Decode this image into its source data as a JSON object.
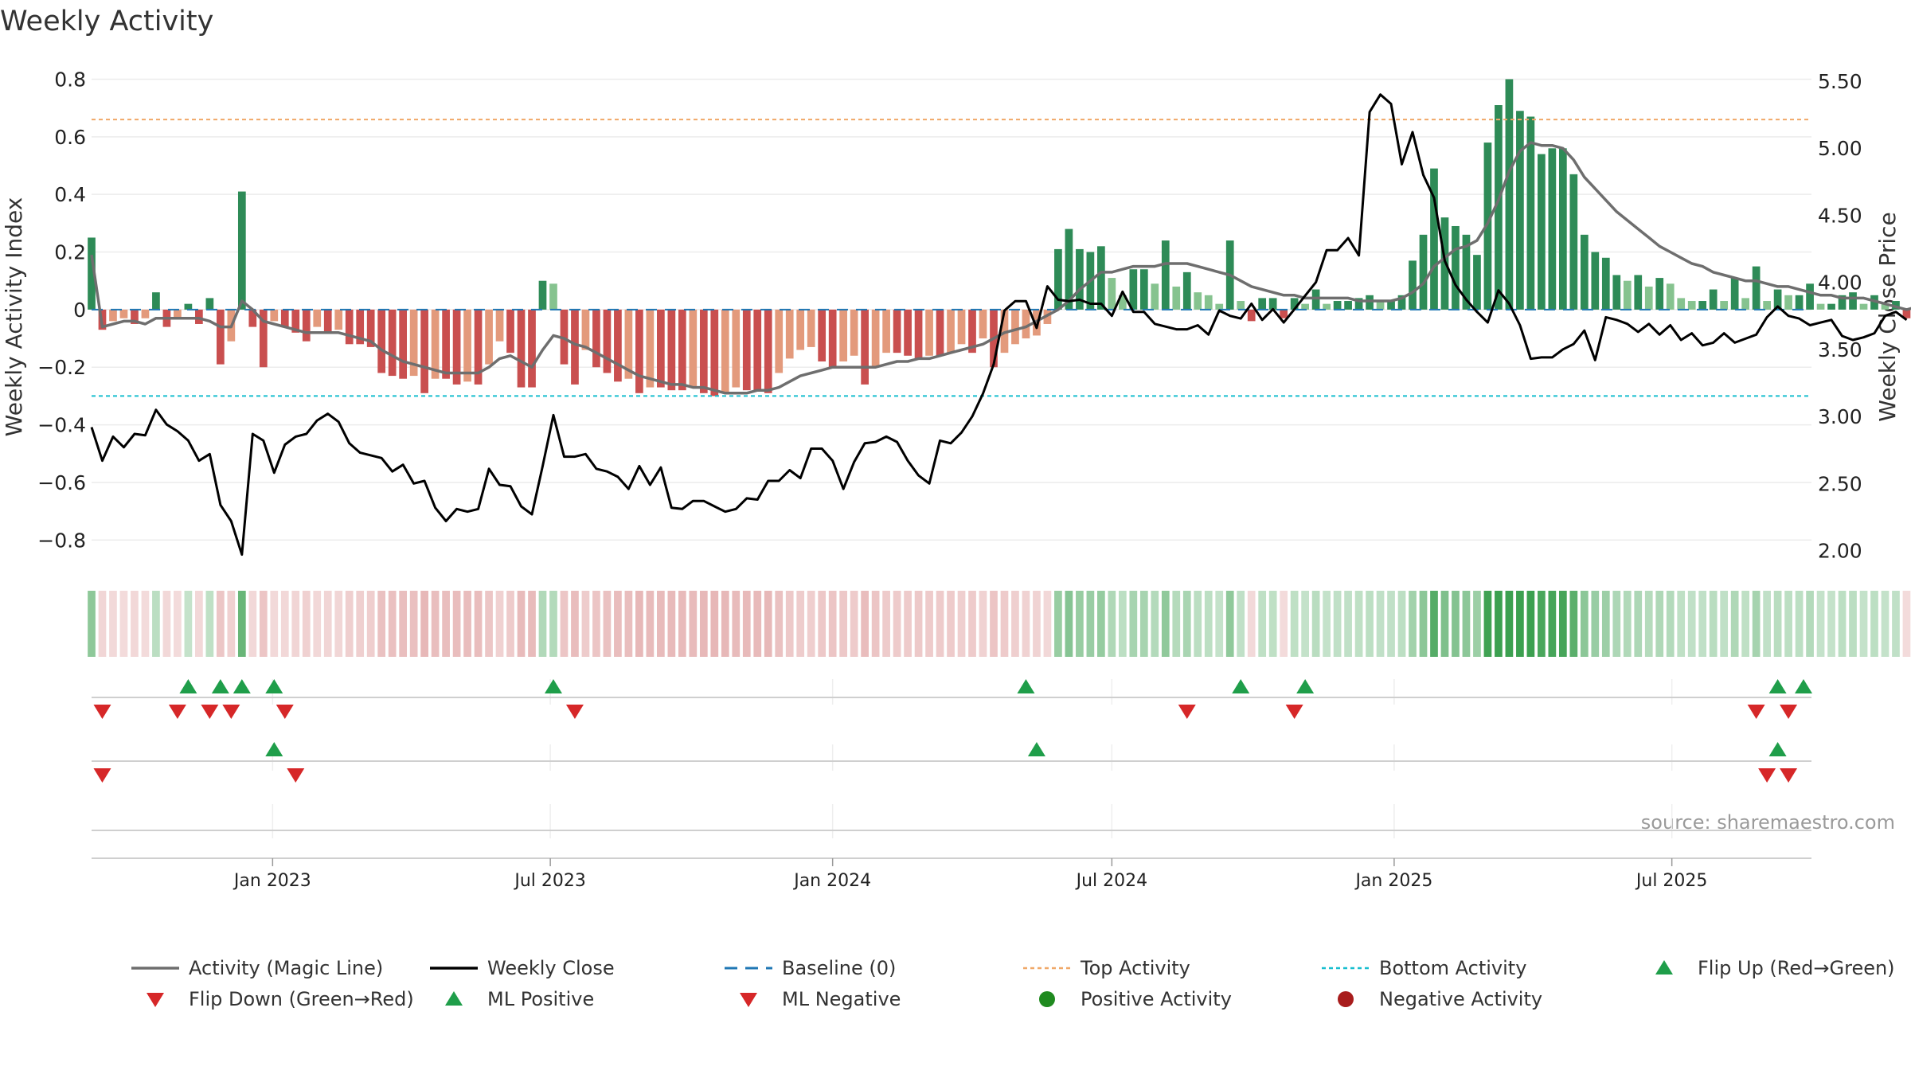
{
  "title": "Weekly Activity",
  "source": "source: sharemaestro.com",
  "colors": {
    "pos_dark": "#2e8b57",
    "pos_light": "#86c38f",
    "neg_dark": "#c94f4f",
    "neg_light": "#e39a7c",
    "magic_line": "#6e6e6e",
    "close_line": "#000000",
    "baseline": "#1f77b4",
    "top": "#f0a868",
    "bottom": "#17becf",
    "up_marker": "#1f9e4a",
    "down_marker": "#d62728",
    "pos_dot": "#1f8a1f",
    "neg_dot": "#a81c1c"
  },
  "chart_data": {
    "type": "bar",
    "title": "Weekly Activity",
    "ylabel": "Weekly Activity Index",
    "y2label": "Weekly Close Price",
    "ylim": [
      -0.86,
      0.84
    ],
    "y2lim": [
      1.95,
      5.6
    ],
    "yticks": [
      0.8,
      0.6,
      0.4,
      0.2,
      0,
      -0.2,
      -0.4,
      -0.6,
      -0.8
    ],
    "ytick_labels": [
      "0.8",
      "0.6",
      "0.4",
      "0.2",
      "0",
      "−0.2",
      "−0.4",
      "−0.6",
      "−0.8"
    ],
    "y2ticks": [
      5.5,
      5.0,
      4.5,
      4.0,
      3.5,
      3.0,
      2.5,
      2.0
    ],
    "y2tick_labels": [
      "5.50",
      "5.00",
      "4.50",
      "4.00",
      "3.50",
      "3.00",
      "2.50",
      "2.00"
    ],
    "xlim": [
      "2022-09-05",
      "2025-09-30"
    ],
    "xticks": [
      {
        "date": "2023-01-01",
        "label": "Jan 2023"
      },
      {
        "date": "2023-07-01",
        "label": "Jul 2023"
      },
      {
        "date": "2024-01-01",
        "label": "Jan 2024"
      },
      {
        "date": "2024-07-01",
        "label": "Jul 2024"
      },
      {
        "date": "2025-01-01",
        "label": "Jan 2025"
      },
      {
        "date": "2025-07-01",
        "label": "Jul 2025"
      }
    ],
    "start_date": "2022-09-05",
    "interval_days": 7,
    "activity": [
      0.25,
      -0.07,
      -0.04,
      -0.03,
      -0.05,
      -0.03,
      0.06,
      -0.06,
      -0.03,
      0.02,
      -0.05,
      0.04,
      -0.19,
      -0.11,
      0.41,
      -0.06,
      -0.2,
      -0.04,
      -0.06,
      -0.08,
      -0.11,
      -0.06,
      -0.08,
      -0.07,
      -0.12,
      -0.12,
      -0.13,
      -0.22,
      -0.23,
      -0.24,
      -0.23,
      -0.29,
      -0.24,
      -0.24,
      -0.26,
      -0.25,
      -0.26,
      -0.19,
      -0.11,
      -0.15,
      -0.27,
      -0.27,
      0.1,
      0.09,
      -0.19,
      -0.26,
      -0.14,
      -0.2,
      -0.22,
      -0.25,
      -0.24,
      -0.29,
      -0.27,
      -0.27,
      -0.28,
      -0.28,
      -0.27,
      -0.29,
      -0.3,
      -0.29,
      -0.27,
      -0.28,
      -0.28,
      -0.29,
      -0.22,
      -0.17,
      -0.14,
      -0.13,
      -0.18,
      -0.2,
      -0.18,
      -0.16,
      -0.26,
      -0.2,
      -0.15,
      -0.15,
      -0.16,
      -0.17,
      -0.16,
      -0.16,
      -0.15,
      -0.12,
      -0.15,
      -0.1,
      -0.2,
      -0.15,
      -0.12,
      -0.1,
      -0.09,
      -0.05,
      0.21,
      0.28,
      0.21,
      0.2,
      0.22,
      0.11,
      0.05,
      0.14,
      0.14,
      0.09,
      0.24,
      0.08,
      0.13,
      0.06,
      0.05,
      0.02,
      0.24,
      0.03,
      -0.04,
      0.04,
      0.04,
      -0.03,
      0.04,
      0.02,
      0.07,
      0.02,
      0.03,
      0.03,
      0.04,
      0.05,
      0.03,
      0.03,
      0.05,
      0.17,
      0.26,
      0.49,
      0.32,
      0.29,
      0.26,
      0.19,
      0.58,
      0.71,
      0.8,
      0.69,
      0.67,
      0.54,
      0.56,
      0.56,
      0.47,
      0.26,
      0.2,
      0.18,
      0.12,
      0.1,
      0.12,
      0.08,
      0.11,
      0.09,
      0.04,
      0.03,
      0.03,
      0.07,
      0.03,
      0.11,
      0.04,
      0.15,
      0.03,
      0.07,
      0.05,
      0.05,
      0.09,
      0.02,
      0.02,
      0.05,
      0.06,
      0.02,
      0.05,
      0.02,
      0.03,
      -0.03,
      0.06,
      -0.04,
      -0.02,
      -0.05,
      0.04,
      -0.01,
      0.06,
      0.02,
      0.02
    ],
    "magic_line": [
      0.19,
      -0.06,
      -0.05,
      -0.04,
      -0.04,
      -0.05,
      -0.03,
      -0.03,
      -0.03,
      -0.03,
      -0.03,
      -0.04,
      -0.06,
      -0.06,
      0.03,
      0,
      -0.04,
      -0.05,
      -0.06,
      -0.07,
      -0.08,
      -0.08,
      -0.08,
      -0.08,
      -0.09,
      -0.1,
      -0.11,
      -0.14,
      -0.16,
      -0.18,
      -0.19,
      -0.2,
      -0.21,
      -0.22,
      -0.22,
      -0.22,
      -0.22,
      -0.2,
      -0.17,
      -0.16,
      -0.18,
      -0.2,
      -0.14,
      -0.09,
      -0.1,
      -0.12,
      -0.13,
      -0.15,
      -0.17,
      -0.19,
      -0.21,
      -0.23,
      -0.24,
      -0.25,
      -0.26,
      -0.26,
      -0.27,
      -0.27,
      -0.28,
      -0.29,
      -0.29,
      -0.29,
      -0.28,
      -0.28,
      -0.27,
      -0.25,
      -0.23,
      -0.22,
      -0.21,
      -0.2,
      -0.2,
      -0.2,
      -0.2,
      -0.2,
      -0.19,
      -0.18,
      -0.18,
      -0.17,
      -0.17,
      -0.16,
      -0.15,
      -0.14,
      -0.13,
      -0.12,
      -0.1,
      -0.08,
      -0.07,
      -0.06,
      -0.04,
      -0.02,
      0,
      0.03,
      0.07,
      0.1,
      0.13,
      0.13,
      0.14,
      0.15,
      0.15,
      0.15,
      0.16,
      0.16,
      0.16,
      0.15,
      0.14,
      0.13,
      0.12,
      0.1,
      0.08,
      0.07,
      0.06,
      0.05,
      0.05,
      0.04,
      0.04,
      0.04,
      0.04,
      0.04,
      0.03,
      0.03,
      0.03,
      0.03,
      0.04,
      0.06,
      0.09,
      0.15,
      0.18,
      0.21,
      0.22,
      0.24,
      0.3,
      0.38,
      0.48,
      0.55,
      0.58,
      0.57,
      0.57,
      0.56,
      0.52,
      0.46,
      0.42,
      0.38,
      0.34,
      0.31,
      0.28,
      0.25,
      0.22,
      0.2,
      0.18,
      0.16,
      0.15,
      0.13,
      0.12,
      0.11,
      0.1,
      0.1,
      0.09,
      0.08,
      0.08,
      0.07,
      0.06,
      0.05,
      0.05,
      0.04,
      0.04,
      0.04,
      0.03,
      0.02,
      0.01,
      0,
      0.01,
      0,
      0,
      -0.01,
      0,
      -0.01,
      0,
      0,
      0
    ],
    "close": [
      2.92,
      2.67,
      2.85,
      2.77,
      2.87,
      2.86,
      3.05,
      2.94,
      2.89,
      2.82,
      2.67,
      2.72,
      2.34,
      2.22,
      1.97,
      2.87,
      2.82,
      2.58,
      2.79,
      2.85,
      2.87,
      2.97,
      3.02,
      2.96,
      2.8,
      2.73,
      2.71,
      2.69,
      2.59,
      2.64,
      2.5,
      2.52,
      2.32,
      2.22,
      2.31,
      2.29,
      2.31,
      2.61,
      2.49,
      2.48,
      2.33,
      2.27,
      2.63,
      3.01,
      2.7,
      2.7,
      2.72,
      2.61,
      2.59,
      2.55,
      2.46,
      2.63,
      2.49,
      2.62,
      2.32,
      2.31,
      2.37,
      2.37,
      2.33,
      2.29,
      2.31,
      2.39,
      2.38,
      2.52,
      2.52,
      2.6,
      2.54,
      2.76,
      2.76,
      2.67,
      2.46,
      2.66,
      2.8,
      2.81,
      2.85,
      2.81,
      2.67,
      2.56,
      2.5,
      2.82,
      2.8,
      2.88,
      3.0,
      3.17,
      3.39,
      3.79,
      3.86,
      3.86,
      3.66,
      3.97,
      3.87,
      3.86,
      3.87,
      3.84,
      3.84,
      3.75,
      3.93,
      3.78,
      3.78,
      3.69,
      3.67,
      3.65,
      3.65,
      3.68,
      3.61,
      3.79,
      3.75,
      3.73,
      3.84,
      3.72,
      3.8,
      3.7,
      3.8,
      3.9,
      4.0,
      4.24,
      4.24,
      4.33,
      4.2,
      5.27,
      5.4,
      5.33,
      4.88,
      5.12,
      4.8,
      4.63,
      4.16,
      3.98,
      3.87,
      3.78,
      3.7,
      3.94,
      3.84,
      3.68,
      3.43,
      3.44,
      3.44,
      3.5,
      3.54,
      3.64,
      3.42,
      3.74,
      3.72,
      3.69,
      3.63,
      3.69,
      3.61,
      3.68,
      3.57,
      3.62,
      3.53,
      3.55,
      3.62,
      3.55,
      3.58,
      3.61,
      3.74,
      3.82,
      3.75,
      3.73,
      3.68,
      3.7,
      3.72,
      3.6,
      3.57,
      3.59,
      3.62,
      3.75,
      3.78,
      3.72
    ],
    "levels": {
      "top": 0.66,
      "bottom": -0.3,
      "baseline": 0
    },
    "signals": {
      "flip_up": [
        "2022-11-07",
        "2022-11-28",
        "2022-12-12",
        "2023-01-02",
        "2023-07-03",
        "2024-05-06",
        "2024-09-23",
        "2024-11-04",
        "2025-09-08",
        "2025-10-06"
      ],
      "flip_down": [
        "2022-09-12",
        "2022-10-31",
        "2022-11-21",
        "2022-12-05",
        "2023-01-09",
        "2023-07-17",
        "2024-08-19",
        "2024-10-28",
        "2025-08-25",
        "2025-09-15"
      ],
      "ml_positive": [
        "2023-01-02",
        "2024-05-13",
        "2025-09-08"
      ],
      "ml_negative": [
        "2022-09-12",
        "2023-01-16",
        "2025-09-01",
        "2025-09-15"
      ]
    },
    "legend": {
      "placement": "bottom",
      "entries": [
        {
          "key": "magic",
          "label": "Activity (Magic Line)"
        },
        {
          "key": "close",
          "label": "Weekly Close"
        },
        {
          "key": "baseline",
          "label": "Baseline (0)"
        },
        {
          "key": "top",
          "label": "Top Activity"
        },
        {
          "key": "bottom",
          "label": "Bottom Activity"
        },
        {
          "key": "flip_up",
          "label": "Flip Up (Red→Green)"
        },
        {
          "key": "flip_down",
          "label": "Flip Down (Green→Red)"
        },
        {
          "key": "ml_pos",
          "label": "ML Positive"
        },
        {
          "key": "ml_neg",
          "label": "ML Negative"
        },
        {
          "key": "pos_act",
          "label": "Positive Activity"
        },
        {
          "key": "neg_act",
          "label": "Negative Activity"
        }
      ]
    }
  }
}
